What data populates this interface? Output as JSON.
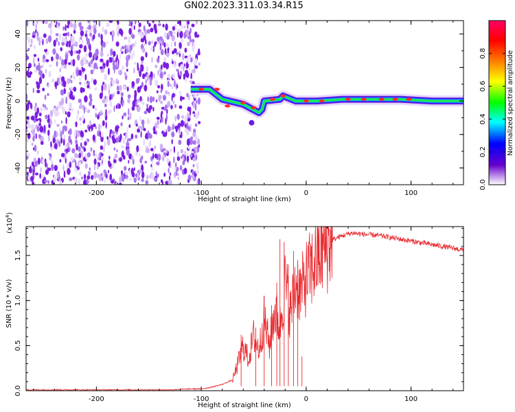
{
  "title": "GN02.2023.311.03.34.R15",
  "colors": {
    "snr_line": "#e8262b",
    "noise_purple": "#7a1fe0",
    "noise_light": "#d7b9f5"
  },
  "chart_data": [
    {
      "type": "heatmap",
      "xlabel": "Height of straight line (km)",
      "ylabel": "Frequency (Hz)",
      "xlim": [
        -267,
        150
      ],
      "ylim": [
        -50,
        48
      ],
      "xticks": [
        -200,
        -100,
        0,
        100
      ],
      "yticks": [
        40,
        20,
        0,
        -20,
        -40
      ],
      "xtick_labels": [
        "-200",
        "-100",
        "0",
        "100"
      ],
      "ytick_labels": [
        "40",
        "20",
        "0",
        "-20",
        "-40"
      ],
      "noise_region": [
        -267,
        -107
      ],
      "signal_track": [
        {
          "x": -110,
          "y": 7
        },
        {
          "x": -92,
          "y": 7
        },
        {
          "x": -80,
          "y": 1
        },
        {
          "x": -60,
          "y": -2
        },
        {
          "x": -45,
          "y": -7
        },
        {
          "x": -42,
          "y": -5
        },
        {
          "x": -40,
          "y": 0
        },
        {
          "x": -25,
          "y": 1
        },
        {
          "x": -22,
          "y": 3
        },
        {
          "x": -10,
          "y": 0
        },
        {
          "x": 10,
          "y": 0
        },
        {
          "x": 35,
          "y": 1
        },
        {
          "x": 60,
          "y": 1
        },
        {
          "x": 90,
          "y": 1
        },
        {
          "x": 120,
          "y": 0
        },
        {
          "x": 150,
          "y": 0
        }
      ],
      "colorbar": {
        "label": "Normalized spectral amplitude",
        "ticks": [
          0.0,
          0.2,
          0.4,
          0.6,
          0.8
        ],
        "tick_labels": [
          "0.0",
          "0.2",
          "0.4",
          "0.6",
          "0.8"
        ],
        "range": [
          0,
          1
        ],
        "colormap": [
          "#ffffff",
          "#6600cc",
          "#0000ff",
          "#00ffff",
          "#00ff00",
          "#ffff00",
          "#ff8000",
          "#ff0000",
          "#ff0066"
        ]
      },
      "grid": false
    },
    {
      "type": "line",
      "xlabel": "Height of straight line (km)",
      "ylabel": "SNR (10 * v/v)",
      "y_multiplier": "(x10",
      "y_exponent": "4",
      "y_multiplier_close": ")",
      "xlim": [
        -267,
        150
      ],
      "ylim": [
        0,
        1.82
      ],
      "xticks": [
        -200,
        -100,
        0,
        100
      ],
      "yticks": [
        0.0,
        0.5,
        1.0,
        1.5
      ],
      "xtick_labels": [
        "-200",
        "-100",
        "0",
        "100"
      ],
      "ytick_labels": [
        "0.0",
        "0.5",
        "1.0",
        "1.5"
      ],
      "series": [
        {
          "color": "#e8262b",
          "x": [
            -267,
            -200,
            -130,
            -110,
            -100,
            -90,
            -80,
            -70,
            -65,
            -60,
            -55,
            -50,
            -45,
            -40,
            -35,
            -30,
            -25,
            -20,
            -15,
            -10,
            -5,
            0,
            5,
            10,
            15,
            20,
            25,
            30,
            35,
            40,
            45,
            50,
            60,
            70,
            80,
            90,
            100,
            110,
            120,
            130,
            140,
            150
          ],
          "y": [
            0.01,
            0.01,
            0.01,
            0.02,
            0.02,
            0.04,
            0.07,
            0.12,
            0.3,
            0.5,
            0.35,
            0.6,
            0.45,
            0.8,
            0.5,
            0.9,
            0.7,
            1.2,
            0.85,
            1.2,
            1.1,
            1.25,
            1.35,
            1.45,
            1.55,
            1.62,
            1.67,
            1.7,
            1.72,
            1.74,
            1.75,
            1.74,
            1.73,
            1.72,
            1.7,
            1.68,
            1.66,
            1.64,
            1.62,
            1.6,
            1.58,
            1.56
          ],
          "spikes": [
            {
              "x": -62,
              "y": 0.62
            },
            {
              "x": -48,
              "y": 0.7
            },
            {
              "x": -40,
              "y": 1.05
            },
            {
              "x": -33,
              "y": 0.95
            },
            {
              "x": -28,
              "y": 1.2
            },
            {
              "x": -25,
              "y": 1.68
            },
            {
              "x": -21,
              "y": 1.65
            },
            {
              "x": -17,
              "y": 1.4
            },
            {
              "x": -12,
              "y": 1.55
            },
            {
              "x": -8,
              "y": 1.45
            },
            {
              "x": -4,
              "y": 0.38
            }
          ]
        }
      ],
      "grid": false
    }
  ]
}
